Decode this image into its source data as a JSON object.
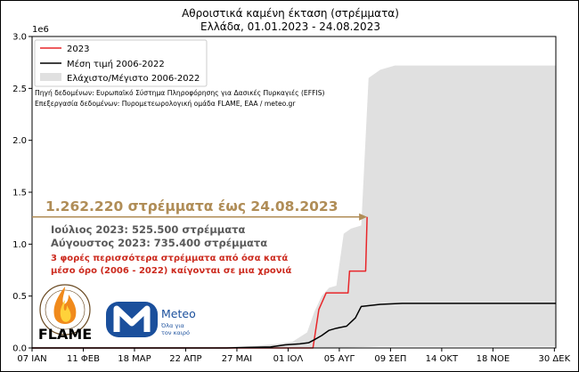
{
  "chart_data": {
    "type": "area",
    "title": "Αθροιστικά καμένη έκταση (στρέμματα)",
    "subtitle": "Ελλάδα, 01.01.2023 - 24.08.2023",
    "xlabel": "",
    "ylabel": "",
    "y_multiplier": "1e6",
    "ylim": [
      0,
      3.0
    ],
    "yticks": [
      0.0,
      0.5,
      1.0,
      1.5,
      2.0,
      2.5,
      3.0
    ],
    "ytick_labels": [
      "0.0",
      "0.5",
      "1.0",
      "1.5",
      "2.0",
      "2.5",
      "3.0"
    ],
    "xlim": [
      7,
      365
    ],
    "xticks": [
      7,
      42,
      77,
      112,
      147,
      182,
      217,
      252,
      287,
      322,
      364
    ],
    "xtick_labels": [
      "07 ΙΑΝ",
      "11 ΦΕΒ",
      "18 ΜΑΡ",
      "22 ΑΠΡ",
      "27 ΜΑΙ",
      "01 ΙΟΛ",
      "05 ΑΥΓ",
      "09 ΣΕΠ",
      "14 ΟΚΤ",
      "18 ΝΟΕ",
      "30 ΔΕΚ"
    ],
    "grid": false,
    "legend_position": "top-left",
    "series": [
      {
        "name": "2023",
        "kind": "line",
        "color": "#e8262a",
        "points": [
          [
            7,
            0
          ],
          [
            190,
            0
          ],
          [
            199,
            0
          ],
          [
            203,
            0.37
          ],
          [
            208,
            0.53
          ],
          [
            223,
            0.53
          ],
          [
            224,
            0.74
          ],
          [
            235,
            0.74
          ],
          [
            236,
            1.262
          ]
        ]
      },
      {
        "name": "Μέση τιμή 2006-2022",
        "kind": "line",
        "color": "#000000",
        "points": [
          [
            7,
            0
          ],
          [
            140,
            0
          ],
          [
            155,
            0.005
          ],
          [
            170,
            0.01
          ],
          [
            180,
            0.03
          ],
          [
            190,
            0.04
          ],
          [
            196,
            0.05
          ],
          [
            200,
            0.08
          ],
          [
            205,
            0.12
          ],
          [
            210,
            0.17
          ],
          [
            215,
            0.19
          ],
          [
            222,
            0.21
          ],
          [
            228,
            0.29
          ],
          [
            232,
            0.4
          ],
          [
            245,
            0.42
          ],
          [
            260,
            0.43
          ],
          [
            300,
            0.43
          ],
          [
            365,
            0.43
          ]
        ]
      },
      {
        "name": "Ελάχιστο/Μέγιστο 2006-2022",
        "kind": "band",
        "color": "#e0e0e0",
        "upper": [
          [
            7,
            0
          ],
          [
            120,
            0
          ],
          [
            140,
            0.01
          ],
          [
            160,
            0.02
          ],
          [
            175,
            0.04
          ],
          [
            185,
            0.06
          ],
          [
            195,
            0.15
          ],
          [
            200,
            0.35
          ],
          [
            205,
            0.5
          ],
          [
            210,
            0.58
          ],
          [
            215,
            0.6
          ],
          [
            220,
            1.1
          ],
          [
            225,
            1.15
          ],
          [
            232,
            1.18
          ],
          [
            237,
            2.6
          ],
          [
            245,
            2.68
          ],
          [
            255,
            2.72
          ],
          [
            365,
            2.72
          ]
        ],
        "lower": [
          [
            7,
            0
          ],
          [
            215,
            0
          ],
          [
            225,
            0.005
          ],
          [
            235,
            0.01
          ],
          [
            245,
            0.015
          ],
          [
            365,
            0.015
          ]
        ]
      }
    ],
    "annotations": {
      "source": "Πηγή δεδομένων: Ευρωπαϊκό Σύστημα Πληροφόρησης για Δασικές Πυρκαγιές (EFFIS)",
      "processing": "Επεξεργασία δεδομένων: Πυρομετεωρολογική ομάδα FLAME, ΕΑΑ / meteo.gr",
      "headline": "1.262.220 στρέμματα έως 24.08.2023",
      "headline_value": 1.262,
      "headline_color": "#b08d57",
      "july": "Ιούλιος 2023: 525.500 στρέμματα",
      "august": "Αύγουστος 2023: 735.400 στρέμματα",
      "note_line1": "3 φορές περισσότερα στρέμματα από όσα κατά",
      "note_line2": "μέσο όρο (2006 - 2022) καίγονται σε μια χρονιά",
      "note_color": "#cc2a1e",
      "stats_color": "#5a5a5a"
    }
  },
  "logos": {
    "flame": "FLAME",
    "flame_seal": "ΟΜΑΔΑ ΠΥΡΟΜΕΤΕΩΡΟΛΟΓΙΑΣ",
    "meteo": "Meteo",
    "meteo_tagline_1": "Όλα για",
    "meteo_tagline_2": "τον καιρό",
    "meteo_color": "#1a4f9c"
  }
}
